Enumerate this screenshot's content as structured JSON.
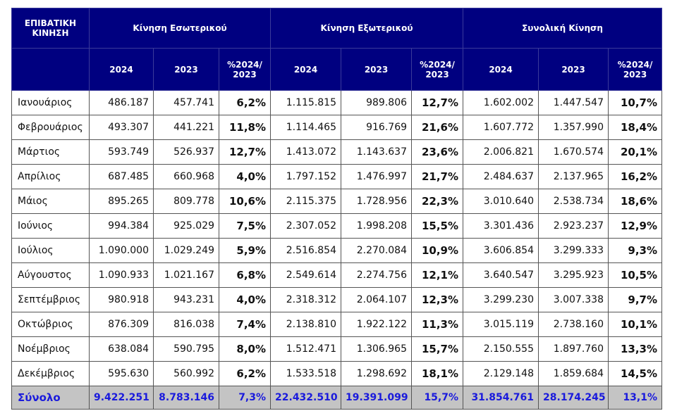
{
  "header": {
    "corner": "ΕΠΙΒΑΤΙΚΗ ΚΙΝΗΣΗ",
    "groups": [
      "Κίνηση Εσωτερικού",
      "Κίνηση Εξωτερικού",
      "Συνολική Κίνηση"
    ],
    "sub": [
      "2024",
      "2023",
      "%2024/ 2023"
    ]
  },
  "rows": [
    [
      "Ιανουάριος",
      "486.187",
      "457.741",
      "6,2%",
      "1.115.815",
      "989.806",
      "12,7%",
      "1.602.002",
      "1.447.547",
      "10,7%"
    ],
    [
      "Φεβρουάριος",
      "493.307",
      "441.221",
      "11,8%",
      "1.114.465",
      "916.769",
      "21,6%",
      "1.607.772",
      "1.357.990",
      "18,4%"
    ],
    [
      "Μάρτιος",
      "593.749",
      "526.937",
      "12,7%",
      "1.413.072",
      "1.143.637",
      "23,6%",
      "2.006.821",
      "1.670.574",
      "20,1%"
    ],
    [
      "Απρίλιος",
      "687.485",
      "660.968",
      "4,0%",
      "1.797.152",
      "1.476.997",
      "21,7%",
      "2.484.637",
      "2.137.965",
      "16,2%"
    ],
    [
      "Μάιος",
      "895.265",
      "809.778",
      "10,6%",
      "2.115.375",
      "1.728.956",
      "22,3%",
      "3.010.640",
      "2.538.734",
      "18,6%"
    ],
    [
      "Ιούνιος",
      "994.384",
      "925.029",
      "7,5%",
      "2.307.052",
      "1.998.208",
      "15,5%",
      "3.301.436",
      "2.923.237",
      "12,9%"
    ],
    [
      "Ιούλιος",
      "1.090.000",
      "1.029.249",
      "5,9%",
      "2.516.854",
      "2.270.084",
      "10,9%",
      "3.606.854",
      "3.299.333",
      "9,3%"
    ],
    [
      "Αύγουστος",
      "1.090.933",
      "1.021.167",
      "6,8%",
      "2.549.614",
      "2.274.756",
      "12,1%",
      "3.640.547",
      "3.295.923",
      "10,5%"
    ],
    [
      "Σεπτέμβριος",
      "980.918",
      "943.231",
      "4,0%",
      "2.318.312",
      "2.064.107",
      "12,3%",
      "3.299.230",
      "3.007.338",
      "9,7%"
    ],
    [
      "Οκτώβριος",
      "876.309",
      "816.038",
      "7,4%",
      "2.138.810",
      "1.922.122",
      "11,3%",
      "3.015.119",
      "2.738.160",
      "10,1%"
    ],
    [
      "Νοέμβριος",
      "638.084",
      "590.795",
      "8,0%",
      "1.512.471",
      "1.306.965",
      "15,7%",
      "2.150.555",
      "1.897.760",
      "13,3%"
    ],
    [
      "Δεκέμβριος",
      "595.630",
      "560.992",
      "6,2%",
      "1.533.518",
      "1.298.692",
      "18,1%",
      "2.129.148",
      "1.859.684",
      "14,5%"
    ]
  ],
  "total": [
    "Σύνολο",
    "9.422.251",
    "8.783.146",
    "7,3%",
    "22.432.510",
    "19.391.099",
    "15,7%",
    "31.854.761",
    "28.174.245",
    "13,1%"
  ],
  "colors": {
    "header_bg": "#000080",
    "total_bg": "#c4c4c4",
    "total_text": "#1a1adc"
  }
}
